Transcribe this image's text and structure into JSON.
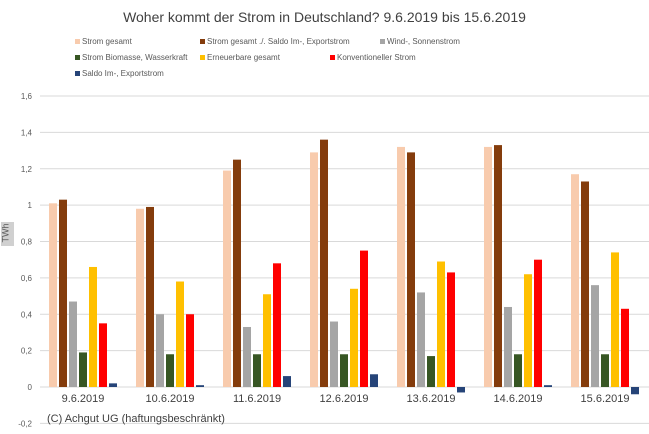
{
  "chart_data": {
    "type": "bar",
    "title": "Woher kommt der Strom in Deutschland? 9.6.2019 bis 15.6.2019",
    "ylabel": "TWh",
    "ylim": [
      -0.2,
      1.6
    ],
    "yticks": [
      "-0,2",
      "0",
      "0,2",
      "0,4",
      "0,6",
      "0,8",
      "1",
      "1,2",
      "1,4",
      "1,6"
    ],
    "ytick_values": [
      -0.2,
      0,
      0.2,
      0.4,
      0.6,
      0.8,
      1,
      1.2,
      1.4,
      1.6
    ],
    "grid": true,
    "legend_position": "top",
    "categories": [
      "9.6.2019",
      "10.6.2019",
      "11.6.2019",
      "12.6.2019",
      "13.6.2019",
      "14.6.2019",
      "15.6.2019"
    ],
    "series": [
      {
        "name": "Strom gesamt",
        "color": "#f8cbad",
        "values": [
          1.01,
          0.98,
          1.19,
          1.29,
          1.32,
          1.32,
          1.17
        ]
      },
      {
        "name": "Strom gesamt ./. Saldo Im-, Exportstrom",
        "color": "#843c0c",
        "values": [
          1.03,
          0.99,
          1.25,
          1.36,
          1.29,
          1.33,
          1.13
        ]
      },
      {
        "name": "Wind-, Sonnenstrom",
        "color": "#a5a5a5",
        "values": [
          0.47,
          0.4,
          0.33,
          0.36,
          0.52,
          0.44,
          0.56
        ]
      },
      {
        "name": "Strom Biomasse, Wasserkraft",
        "color": "#375623",
        "values": [
          0.19,
          0.18,
          0.18,
          0.18,
          0.17,
          0.18,
          0.18
        ]
      },
      {
        "name": "Erneuerbare gesamt",
        "color": "#ffc000",
        "values": [
          0.66,
          0.58,
          0.51,
          0.54,
          0.69,
          0.62,
          0.74
        ]
      },
      {
        "name": "Konventioneller Strom",
        "color": "#ff0000",
        "values": [
          0.35,
          0.4,
          0.68,
          0.75,
          0.63,
          0.7,
          0.43
        ]
      },
      {
        "name": "Saldo Im-, Exportstrom",
        "color": "#264478",
        "values": [
          0.02,
          0.01,
          0.06,
          0.07,
          -0.03,
          0.01,
          -0.04
        ]
      }
    ]
  },
  "footer": {
    "copyright": "(C) Achgut UG (haftungsbeschränkt)"
  }
}
